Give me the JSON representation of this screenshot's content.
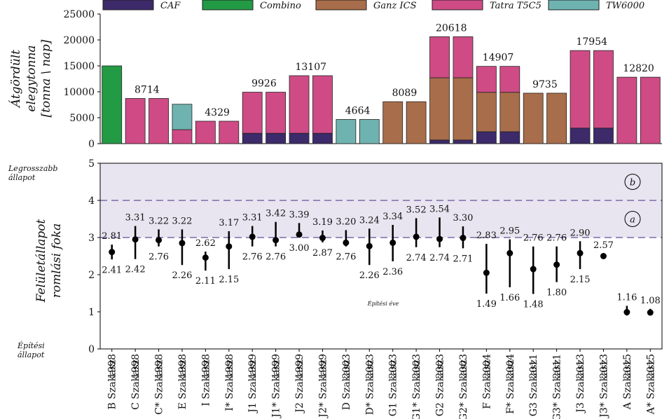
{
  "chart_data": [
    {
      "type": "bar",
      "stacked": true,
      "ylabel_line1": "Átgördült",
      "ylabel_line2": "elegytonna",
      "ylabel_line3": "[tonna \\ nap]",
      "ylim": [
        0,
        25000
      ],
      "yticks": [
        "0",
        "5000",
        "10000",
        "15000",
        "20000",
        "25000"
      ],
      "legend": [
        "CAF",
        "Combino",
        "Ganz ICS",
        "Tatra T5C5",
        "TW6000"
      ],
      "colors": {
        "CAF": "#3d2a6b",
        "Combino": "#239a44",
        "Ganz ICS": "#a86d4a",
        "Tatra T5C5": "#cf4b85",
        "TW6000": "#6fb3b0"
      },
      "categories": [
        "B Szakasz",
        "C Szakasz",
        "C* Szakasz",
        "E Szakasz",
        "I Szakasz",
        "I* Szakasz",
        "J1 Szakasz",
        "J1* Szakasz",
        "J2 Szakasz",
        "J2* Szakasz",
        "D Szakasz",
        "D* Szakasz",
        "G1 Szakasz",
        "G1* Szakasz",
        "G2 Szakasz",
        "G2* Szakasz",
        "F Szakasz",
        "F* Szakasz",
        "G3 Szakasz",
        "G3* Szakasz",
        "J3 Szakasz",
        "J3* Szakasz",
        "A Szakasz",
        "A* Szakasz"
      ],
      "series": [
        {
          "name": "CAF",
          "values": [
            0,
            0,
            0,
            0,
            0,
            0,
            2000,
            2000,
            2000,
            2000,
            0,
            0,
            0,
            0,
            700,
            700,
            2300,
            2300,
            0,
            0,
            3000,
            3000,
            0,
            0
          ]
        },
        {
          "name": "Combino",
          "values": [
            15000,
            0,
            0,
            0,
            0,
            0,
            0,
            0,
            0,
            0,
            0,
            0,
            0,
            0,
            0,
            0,
            0,
            0,
            0,
            0,
            0,
            0,
            0,
            0
          ]
        },
        {
          "name": "Ganz ICS",
          "values": [
            0,
            0,
            0,
            0,
            0,
            0,
            0,
            0,
            0,
            0,
            0,
            0,
            8089,
            8089,
            12000,
            12000,
            7600,
            7600,
            9735,
            9735,
            0,
            0,
            0,
            0
          ]
        },
        {
          "name": "Tatra T5C5",
          "values": [
            0,
            8714,
            8714,
            2700,
            4329,
            4329,
            7926,
            7926,
            11107,
            11107,
            0,
            0,
            0,
            0,
            7918,
            7918,
            5007,
            5007,
            0,
            0,
            14954,
            14954,
            12820,
            12820
          ]
        },
        {
          "name": "TW6000",
          "values": [
            0,
            0,
            0,
            4900,
            0,
            0,
            0,
            0,
            0,
            0,
            4664,
            4664,
            0,
            0,
            0,
            0,
            0,
            0,
            0,
            0,
            0,
            0,
            0,
            0
          ]
        }
      ],
      "group_totals": [
        {
          "value": "8714",
          "cols": [
            1,
            2
          ]
        },
        {
          "value": "4329",
          "cols": [
            4,
            5
          ]
        },
        {
          "value": "9926",
          "cols": [
            6,
            7
          ]
        },
        {
          "value": "13107",
          "cols": [
            8,
            9
          ]
        },
        {
          "value": "4664",
          "cols": [
            10,
            11
          ]
        },
        {
          "value": "8089",
          "cols": [
            12,
            13
          ]
        },
        {
          "value": "20618",
          "cols": [
            14,
            15
          ]
        },
        {
          "value": "14907",
          "cols": [
            16,
            17
          ]
        },
        {
          "value": "9735",
          "cols": [
            18,
            19
          ]
        },
        {
          "value": "17954",
          "cols": [
            20,
            21
          ]
        },
        {
          "value": "12820",
          "cols": [
            22,
            23
          ]
        }
      ]
    },
    {
      "type": "errorbar",
      "ylabel_line1": "Felületállapot",
      "ylabel_line2": "romlási foka",
      "ylim": [
        0,
        5
      ],
      "yticks": [
        "0",
        "1",
        "2",
        "3",
        "4",
        "5"
      ],
      "y_annot_top_line1": "Legrosszabb",
      "y_annot_top_line2": "állapot",
      "y_annot_bottom_line1": "Építési",
      "y_annot_bottom_line2": "állapot",
      "center_note": "Építési éve",
      "band": [
        3,
        5
      ],
      "thresholds": [
        3,
        4
      ],
      "zone_labels": [
        "a",
        "b"
      ],
      "years": [
        "1998",
        "1998",
        "1998",
        "1998",
        "1998",
        "1998",
        "1999",
        "1999",
        "1999",
        "1999",
        "2003",
        "2003",
        "2003",
        "2003",
        "2003",
        "2003",
        "2004",
        "2004",
        "2011",
        "2011",
        "2013",
        "2013",
        "2015",
        "2015"
      ],
      "points": [
        {
          "mean": 2.61,
          "min": 2.41,
          "max": 2.81,
          "min_label": "2.41",
          "max_label": "2.81"
        },
        {
          "mean": 2.95,
          "min": 2.42,
          "max": 3.31,
          "min_label": "2.42",
          "max_label": "3.31"
        },
        {
          "mean": 2.93,
          "min": 2.76,
          "max": 3.22,
          "min_label": "2.76",
          "max_label": "3.22"
        },
        {
          "mean": 2.85,
          "min": 2.26,
          "max": 3.22,
          "min_label": "2.26",
          "max_label": "3.22"
        },
        {
          "mean": 2.46,
          "min": 2.11,
          "max": 2.62,
          "min_label": "2.11",
          "max_label": "2.62"
        },
        {
          "mean": 2.76,
          "min": 2.15,
          "max": 3.17,
          "min_label": "2.15",
          "max_label": "3.17"
        },
        {
          "mean": 3.02,
          "min": 2.76,
          "max": 3.31,
          "min_label": "2.76",
          "max_label": "3.31"
        },
        {
          "mean": 2.93,
          "min": 2.76,
          "max": 3.42,
          "min_label": "2.76",
          "max_label": "3.42"
        },
        {
          "mean": 3.08,
          "min": 3.0,
          "max": 3.39,
          "min_label": "3.00",
          "max_label": "3.39"
        },
        {
          "mean": 2.99,
          "min": 2.87,
          "max": 3.19,
          "min_label": "2.87",
          "max_label": "3.19"
        },
        {
          "mean": 2.86,
          "min": 2.76,
          "max": 3.2,
          "min_label": "2.76",
          "max_label": "3.20"
        },
        {
          "mean": 2.77,
          "min": 2.26,
          "max": 3.24,
          "min_label": "2.26",
          "max_label": "3.24"
        },
        {
          "mean": 2.86,
          "min": 2.36,
          "max": 3.34,
          "min_label": "2.36",
          "max_label": "3.34"
        },
        {
          "mean": 3.02,
          "min": 2.74,
          "max": 3.52,
          "min_label": "2.74",
          "max_label": "3.52"
        },
        {
          "mean": 2.96,
          "min": 2.74,
          "max": 3.54,
          "min_label": "2.74",
          "max_label": "3.54"
        },
        {
          "mean": 2.99,
          "min": 2.71,
          "max": 3.3,
          "min_label": "2.71",
          "max_label": "3.30"
        },
        {
          "mean": 2.05,
          "min": 1.49,
          "max": 2.83,
          "min_label": "1.49",
          "max_label": "2.83"
        },
        {
          "mean": 2.58,
          "min": 1.66,
          "max": 2.95,
          "min_label": "1.66",
          "max_label": "2.95"
        },
        {
          "mean": 2.15,
          "min": 1.48,
          "max": 2.76,
          "min_label": "1.48",
          "max_label": "2.76"
        },
        {
          "mean": 2.27,
          "min": 1.8,
          "max": 2.76,
          "min_label": "1.80",
          "max_label": "2.76"
        },
        {
          "mean": 2.58,
          "min": 2.15,
          "max": 2.9,
          "min_label": "2.15",
          "max_label": "2.90"
        },
        {
          "mean": 2.5,
          "min": 2.43,
          "max": 2.57,
          "min_label": "",
          "max_label": "2.57"
        },
        {
          "mean": 0.99,
          "min": 0.9,
          "max": 1.16,
          "min_label": "",
          "max_label": "1.16"
        },
        {
          "mean": 0.98,
          "min": 0.95,
          "max": 1.08,
          "min_label": "",
          "max_label": "1.08"
        }
      ]
    }
  ]
}
